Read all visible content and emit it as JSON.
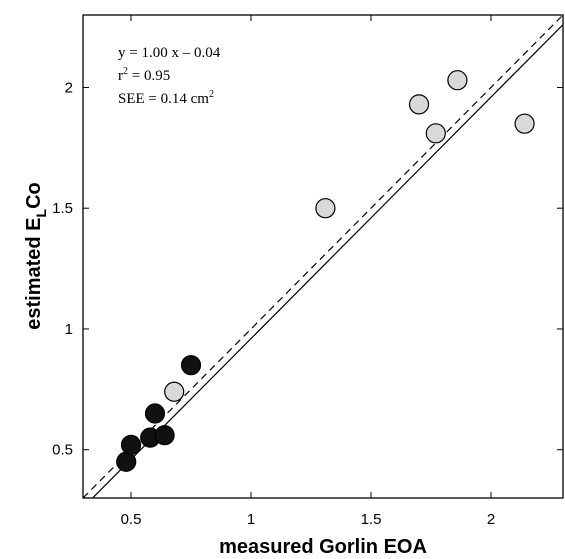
{
  "chart_data": {
    "type": "scatter",
    "title": "",
    "xlabel": "measured Gorlin EOA",
    "ylabel": {
      "main": "estimated E",
      "sub": "L",
      "suffix": "Co"
    },
    "xlim": [
      0.3,
      2.3
    ],
    "ylim": [
      0.3,
      2.3
    ],
    "x_ticks": [
      0.5,
      1,
      1.5,
      2
    ],
    "y_ticks": [
      0.5,
      1,
      1.5,
      2
    ],
    "x_tick_labels": [
      "0.5",
      "1",
      "1.5",
      "2"
    ],
    "y_tick_labels": [
      "0.5",
      "1",
      "1.5",
      "2"
    ],
    "grid": false,
    "series": [
      {
        "marker_color": "#111111",
        "points": [
          {
            "x": 0.48,
            "y": 0.45
          },
          {
            "x": 0.5,
            "y": 0.52
          },
          {
            "x": 0.58,
            "y": 0.55
          },
          {
            "x": 0.64,
            "y": 0.56
          },
          {
            "x": 0.6,
            "y": 0.65
          },
          {
            "x": 0.75,
            "y": 0.85
          }
        ]
      },
      {
        "marker_color": "#d9d9d9",
        "points": [
          {
            "x": 0.68,
            "y": 0.74
          },
          {
            "x": 1.31,
            "y": 1.5
          },
          {
            "x": 1.7,
            "y": 1.93
          },
          {
            "x": 1.77,
            "y": 1.81
          },
          {
            "x": 1.86,
            "y": 2.03
          },
          {
            "x": 2.14,
            "y": 1.85
          }
        ]
      }
    ],
    "lines": [
      {
        "kind": "regression",
        "style": "solid",
        "slope": 1.0,
        "intercept": -0.04
      },
      {
        "kind": "identity",
        "style": "dashed",
        "slope": 1.0,
        "intercept": 0.0
      }
    ],
    "annotations": {
      "line1": "y = 1.00 x – 0.04",
      "line2_base": "r",
      "line2_sup": "2",
      "line2_rest": " = 0.95",
      "line3_base": "SEE = 0.14 cm",
      "line3_sup": "2"
    }
  }
}
